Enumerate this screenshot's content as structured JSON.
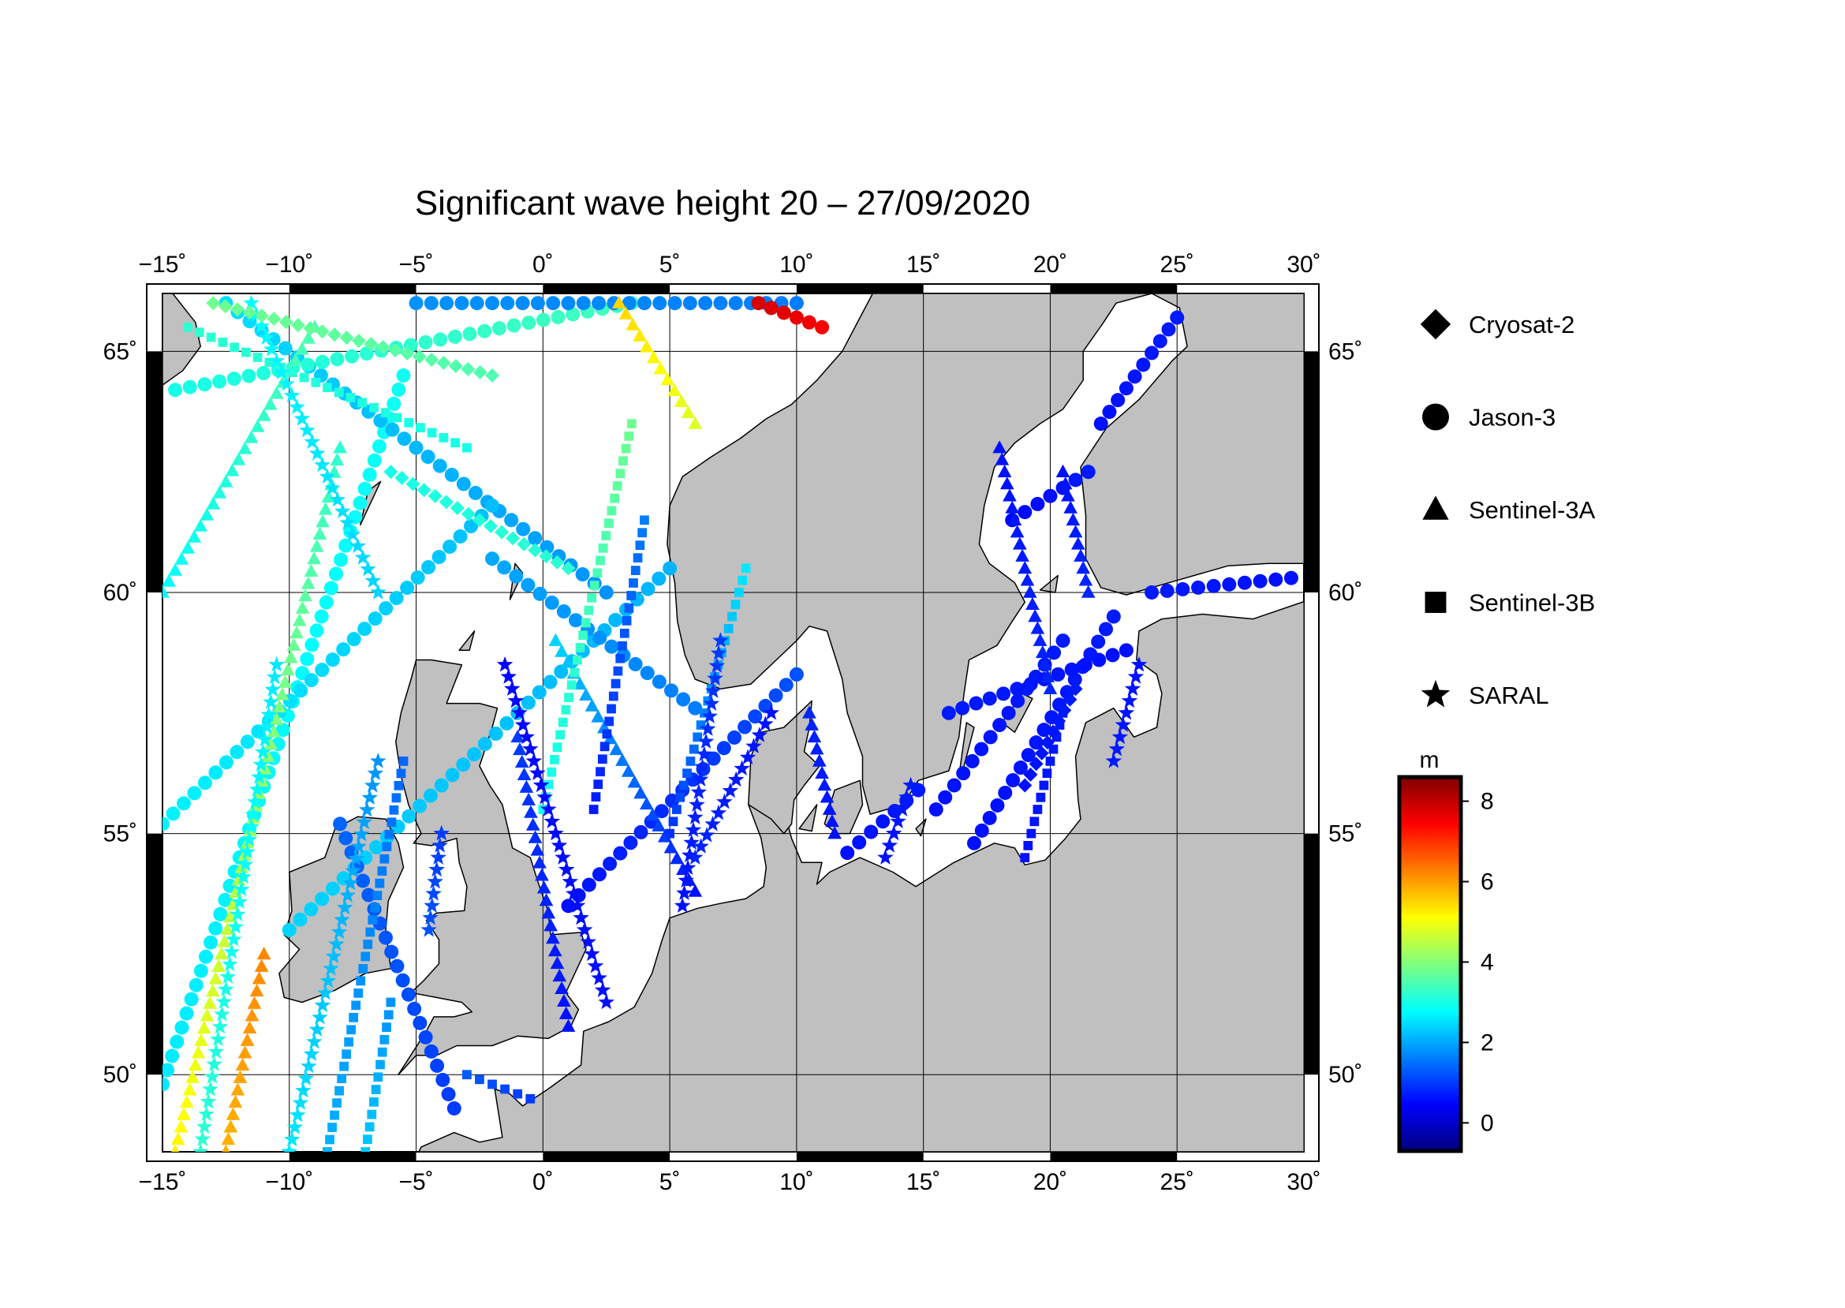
{
  "title": "Significant wave height 20 – 27/09/2020",
  "map": {
    "lon_range": [
      -15,
      30
    ],
    "lat_range": [
      48.4,
      66.2
    ],
    "lon_ticks": [
      {
        "value": -15,
        "label": "−15˚"
      },
      {
        "value": -10,
        "label": "−10˚"
      },
      {
        "value": -5,
        "label": "−5˚"
      },
      {
        "value": 0,
        "label": "0˚"
      },
      {
        "value": 5,
        "label": "5˚"
      },
      {
        "value": 10,
        "label": "10˚"
      },
      {
        "value": 15,
        "label": "15˚"
      },
      {
        "value": 20,
        "label": "20˚"
      },
      {
        "value": 25,
        "label": "25˚"
      },
      {
        "value": 30,
        "label": "30˚"
      }
    ],
    "lat_ticks": [
      {
        "value": 50,
        "label": "50˚"
      },
      {
        "value": 55,
        "label": "55˚"
      },
      {
        "value": 60,
        "label": "60˚"
      },
      {
        "value": 65,
        "label": "65˚"
      }
    ],
    "land_color": "#c0c0c0",
    "sea_color": "#ffffff",
    "grid": true
  },
  "legend": {
    "items": [
      {
        "label": "Cryosat-2",
        "marker": "diamond"
      },
      {
        "label": "Jason-3",
        "marker": "circle"
      },
      {
        "label": "Sentinel-3A",
        "marker": "triangle"
      },
      {
        "label": "Sentinel-3B",
        "marker": "square"
      },
      {
        "label": "SARAL",
        "marker": "star"
      }
    ]
  },
  "colorbar": {
    "unit": "m",
    "min": -0.7,
    "max": 8.6,
    "ticks": [
      {
        "value": 0,
        "label": "0"
      },
      {
        "value": 2,
        "label": "2"
      },
      {
        "value": 4,
        "label": "4"
      },
      {
        "value": 6,
        "label": "6"
      },
      {
        "value": 8,
        "label": "8"
      }
    ],
    "colormap": [
      "#00007f",
      "#0000ff",
      "#007fff",
      "#00ffff",
      "#7fff7f",
      "#ffff00",
      "#ff7f00",
      "#ff0000",
      "#7f0000"
    ]
  },
  "chart_data": {
    "type": "scatter",
    "title": "Significant wave height 20 – 27/09/2020",
    "value_unit": "m",
    "series": [
      {
        "name": "Jason-3",
        "marker": "circle",
        "tracks": [
          {
            "from": [
              -15,
              49.8
            ],
            "to": [
              -5.5,
              64.5
            ],
            "swh_from": 2.6,
            "swh_to": 2.9
          },
          {
            "from": [
              -12.5,
              66.0
            ],
            "to": [
              2.5,
              60.0
            ],
            "swh_from": 2.5,
            "swh_to": 1.8
          },
          {
            "from": [
              -14.5,
              64.2
            ],
            "to": [
              3.5,
              66.0
            ],
            "swh_from": 3.0,
            "swh_to": 3.4
          },
          {
            "from": [
              -15,
              55.2
            ],
            "to": [
              -2.0,
              61.8
            ],
            "swh_from": 2.7,
            "swh_to": 2.2
          },
          {
            "from": [
              -10,
              53.0
            ],
            "to": [
              5.0,
              60.5
            ],
            "swh_from": 2.4,
            "swh_to": 2.1
          },
          {
            "from": [
              -3.5,
              49.3
            ],
            "to": [
              -8.0,
              55.2
            ],
            "swh_from": 1.0,
            "swh_to": 1.4
          },
          {
            "from": [
              -2.0,
              60.7
            ],
            "to": [
              6.0,
              57.6
            ],
            "swh_from": 2.0,
            "swh_to": 1.6
          },
          {
            "from": [
              1.0,
              53.5
            ],
            "to": [
              10.0,
              58.3
            ],
            "swh_from": 0.6,
            "swh_to": 1.2
          },
          {
            "from": [
              -5,
              66.0
            ],
            "to": [
              10.0,
              66.0
            ],
            "swh_from": 1.8,
            "swh_to": 1.6
          },
          {
            "from": [
              8.5,
              66.0
            ],
            "to": [
              11.0,
              65.5
            ],
            "swh_from": 7.8,
            "swh_to": 7.5
          },
          {
            "from": [
              17.0,
              54.8
            ],
            "to": [
              22.5,
              59.5
            ],
            "swh_from": 0.6,
            "swh_to": 0.7
          },
          {
            "from": [
              15.5,
              55.5
            ],
            "to": [
              20.5,
              59.0
            ],
            "swh_from": 0.6,
            "swh_to": 0.7
          },
          {
            "from": [
              16.0,
              57.5
            ],
            "to": [
              23.0,
              58.8
            ],
            "swh_from": 0.7,
            "swh_to": 0.6
          },
          {
            "from": [
              22.0,
              63.5
            ],
            "to": [
              25.0,
              65.7
            ],
            "swh_from": 0.6,
            "swh_to": 0.7
          },
          {
            "from": [
              24.0,
              60.0
            ],
            "to": [
              29.5,
              60.3
            ],
            "swh_from": 0.7,
            "swh_to": 0.6
          },
          {
            "from": [
              18.5,
              61.5
            ],
            "to": [
              21.5,
              62.5
            ],
            "swh_from": 0.5,
            "swh_to": 0.7
          },
          {
            "from": [
              12.0,
              54.6
            ],
            "to": [
              14.8,
              55.9
            ],
            "swh_from": 0.6,
            "swh_to": 0.7
          }
        ]
      },
      {
        "name": "Sentinel-3A",
        "marker": "triangle",
        "tracks": [
          {
            "from": [
              -14.5,
              48.4
            ],
            "to": [
              -8.0,
              63.0
            ],
            "swh_from": 5.2,
            "swh_to": 3.2
          },
          {
            "from": [
              -15,
              60.0
            ],
            "to": [
              -9.0,
              65.5
            ],
            "swh_from": 2.8,
            "swh_to": 3.5
          },
          {
            "from": [
              -1.0,
              57.0
            ],
            "to": [
              1.0,
              51.0
            ],
            "swh_from": 1.0,
            "swh_to": 0.6
          },
          {
            "from": [
              0.5,
              59.0
            ],
            "to": [
              6.0,
              53.8
            ],
            "swh_from": 2.4,
            "swh_to": 0.6
          },
          {
            "from": [
              3.0,
              66.0
            ],
            "to": [
              6.0,
              63.5
            ],
            "swh_from": 5.5,
            "swh_to": 4.8
          },
          {
            "from": [
              18.0,
              63.0
            ],
            "to": [
              20.0,
              58.0
            ],
            "swh_from": 0.6,
            "swh_to": 0.8
          },
          {
            "from": [
              20.5,
              62.5
            ],
            "to": [
              21.5,
              60.0
            ],
            "swh_from": 0.6,
            "swh_to": 0.8
          },
          {
            "from": [
              10.5,
              57.5
            ],
            "to": [
              11.5,
              55.0
            ],
            "swh_from": 0.8,
            "swh_to": 0.6
          },
          {
            "from": [
              -12.5,
              48.4
            ],
            "to": [
              -11.0,
              52.5
            ],
            "swh_from": 5.8,
            "swh_to": 6.2
          }
        ]
      },
      {
        "name": "Sentinel-3B",
        "marker": "square",
        "tracks": [
          {
            "from": [
              -8.5,
              48.4
            ],
            "to": [
              -5.5,
              56.5
            ],
            "swh_from": 2.1,
            "swh_to": 1.4
          },
          {
            "from": [
              -7.0,
              48.4
            ],
            "to": [
              -6.0,
              51.5
            ],
            "swh_from": 2.3,
            "swh_to": 1.8
          },
          {
            "from": [
              0.0,
              55.5
            ],
            "to": [
              3.5,
              63.5
            ],
            "swh_from": 2.9,
            "swh_to": 3.8
          },
          {
            "from": [
              2.0,
              55.5
            ],
            "to": [
              4.0,
              61.5
            ],
            "swh_from": 0.7,
            "swh_to": 1.6
          },
          {
            "from": [
              5.0,
              55.0
            ],
            "to": [
              8.0,
              60.5
            ],
            "swh_from": 0.9,
            "swh_to": 2.6
          },
          {
            "from": [
              -3.0,
              50.0
            ],
            "to": [
              -0.5,
              49.5
            ],
            "swh_from": 1.3,
            "swh_to": 1.0
          },
          {
            "from": [
              -14.0,
              65.5
            ],
            "to": [
              -3.0,
              63.0
            ],
            "swh_from": 3.2,
            "swh_to": 3.0
          },
          {
            "from": [
              19.0,
              54.5
            ],
            "to": [
              20.5,
              57.5
            ],
            "swh_from": 0.6,
            "swh_to": 0.7
          }
        ]
      },
      {
        "name": "SARAL",
        "marker": "star",
        "tracks": [
          {
            "from": [
              -13.5,
              48.4
            ],
            "to": [
              -10.5,
              58.5
            ],
            "swh_from": 3.2,
            "swh_to": 2.6
          },
          {
            "from": [
              -10.0,
              48.4
            ],
            "to": [
              -6.5,
              56.5
            ],
            "swh_from": 2.6,
            "swh_to": 1.8
          },
          {
            "from": [
              -1.5,
              58.5
            ],
            "to": [
              2.5,
              51.5
            ],
            "swh_from": 0.5,
            "swh_to": 0.6
          },
          {
            "from": [
              -11.5,
              66.0
            ],
            "to": [
              -6.5,
              60.0
            ],
            "swh_from": 2.8,
            "swh_to": 2.4
          },
          {
            "from": [
              5.5,
              53.5
            ],
            "to": [
              7.0,
              59.0
            ],
            "swh_from": 0.6,
            "swh_to": 1.0
          },
          {
            "from": [
              6.0,
              54.5
            ],
            "to": [
              9.0,
              57.5
            ],
            "swh_from": 0.8,
            "swh_to": 0.6
          },
          {
            "from": [
              13.5,
              54.5
            ],
            "to": [
              14.5,
              56.0
            ],
            "swh_from": 0.6,
            "swh_to": 0.7
          },
          {
            "from": [
              22.5,
              56.5
            ],
            "to": [
              23.5,
              58.5
            ],
            "swh_from": 0.7,
            "swh_to": 0.6
          },
          {
            "from": [
              -4.0,
              55.0
            ],
            "to": [
              -4.5,
              53.0
            ],
            "swh_from": 1.0,
            "swh_to": 1.2
          }
        ]
      },
      {
        "name": "Cryosat-2",
        "marker": "diamond",
        "tracks": [
          {
            "from": [
              -13.0,
              66.0
            ],
            "to": [
              -2.0,
              64.5
            ],
            "swh_from": 3.8,
            "swh_to": 3.5
          },
          {
            "from": [
              -6.0,
              62.5
            ],
            "to": [
              1.0,
              60.5
            ],
            "swh_from": 3.0,
            "swh_to": 3.2
          },
          {
            "from": [
              19.0,
              56.0
            ],
            "to": [
              21.0,
              58.0
            ],
            "swh_from": 0.6,
            "swh_to": 0.7
          }
        ]
      }
    ]
  }
}
